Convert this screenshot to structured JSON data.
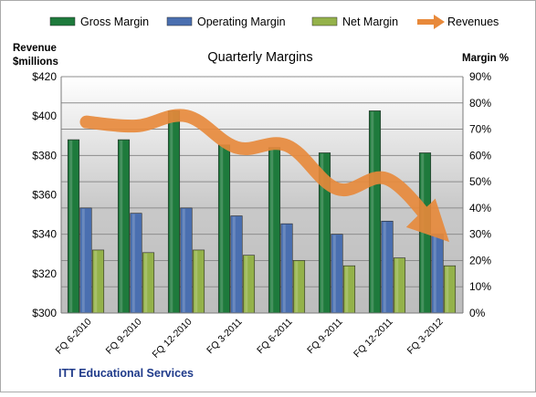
{
  "chart_data": {
    "type": "bar",
    "title": "Quarterly Margins",
    "footer": "ITT Educational Services",
    "categories": [
      "FQ 6-2010",
      "FQ 9-2010",
      "FQ 12-2010",
      "FQ 3-2011",
      "FQ 6-2011",
      "FQ 9-2011",
      "FQ 12-2011",
      "FQ 3-2012"
    ],
    "left_axis": {
      "label_line1": "Revenue",
      "label_line2": "$millions",
      "ylim": [
        300,
        420
      ],
      "ticks": [
        300,
        320,
        340,
        360,
        380,
        400,
        420
      ],
      "tick_labels": [
        "$300",
        "$320",
        "$340",
        "$360",
        "$380",
        "$400",
        "$420"
      ]
    },
    "right_axis": {
      "label": "Margin %",
      "ylim": [
        0,
        90
      ],
      "ticks": [
        0,
        10,
        20,
        30,
        40,
        50,
        60,
        70,
        80,
        90
      ],
      "tick_labels": [
        "0%",
        "10%",
        "20%",
        "30%",
        "40%",
        "50%",
        "60%",
        "70%",
        "80%",
        "90%"
      ]
    },
    "series": [
      {
        "name": "Gross Margin",
        "axis": "right",
        "kind": "bar",
        "color": "#1e7a3c",
        "values": [
          66,
          66,
          77,
          64,
          63,
          61,
          77,
          61
        ]
      },
      {
        "name": "Operating Margin",
        "axis": "right",
        "kind": "bar",
        "color": "#4a6fb0",
        "values": [
          40,
          38,
          40,
          37,
          34,
          30,
          35,
          30
        ]
      },
      {
        "name": "Net Margin",
        "axis": "right",
        "kind": "bar",
        "color": "#94b24a",
        "values": [
          24,
          23,
          24,
          22,
          20,
          18,
          21,
          18
        ]
      },
      {
        "name": "Revenues",
        "axis": "left",
        "kind": "line",
        "color": "#e8893a",
        "values": [
          397,
          395,
          400,
          384,
          385,
          363,
          368,
          342
        ]
      }
    ],
    "legend_position": "top",
    "grid": true
  }
}
